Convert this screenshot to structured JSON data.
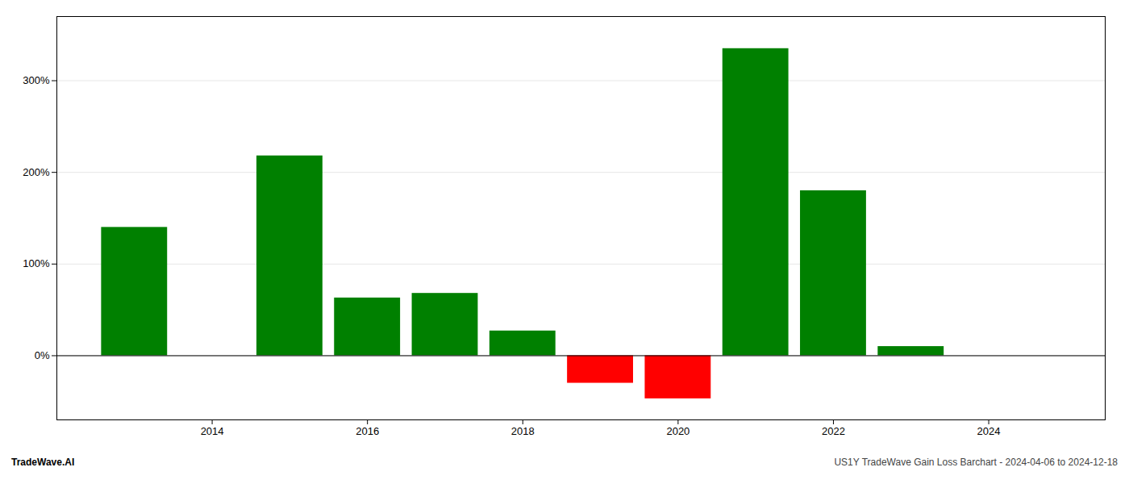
{
  "chart_data": {
    "type": "bar",
    "title": "US1Y TradeWave Gain Loss Barchart - 2024-04-06 to 2024-12-18",
    "annotations": [
      "TradeWave.AI"
    ],
    "x": [
      2013,
      2015,
      2016,
      2017,
      2018,
      2019,
      2020,
      2021,
      2022,
      2023
    ],
    "values": [
      140,
      218,
      63,
      68,
      27,
      -30,
      -47,
      335,
      180,
      10
    ],
    "colors": [
      "#008000",
      "#008000",
      "#008000",
      "#008000",
      "#008000",
      "#ff0000",
      "#ff0000",
      "#008000",
      "#008000",
      "#008000"
    ],
    "xlim": [
      2012.0,
      2025.5
    ],
    "xticks": [
      2014,
      2016,
      2018,
      2020,
      2022,
      2024
    ],
    "ylim": [
      -70,
      370
    ],
    "yticks": [
      {
        "value": 0,
        "label": "0%"
      },
      {
        "value": 100,
        "label": "100%"
      },
      {
        "value": 200,
        "label": "200%"
      },
      {
        "value": 300,
        "label": "300%"
      }
    ],
    "grid": true
  }
}
